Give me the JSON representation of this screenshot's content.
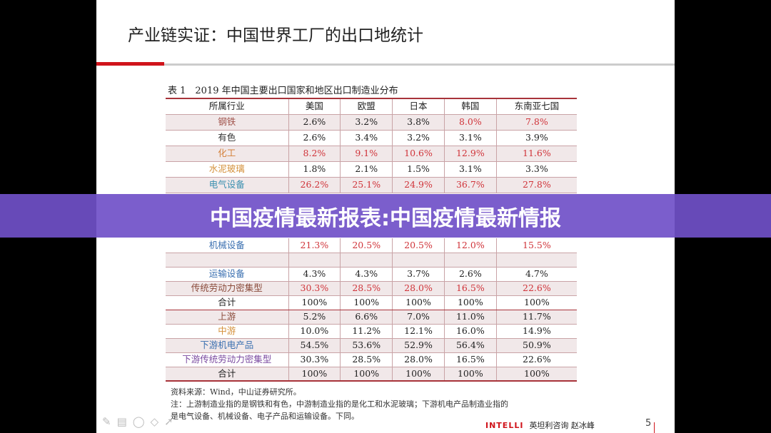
{
  "slide_title": "产业链实证：中国世界工厂的出口地统计",
  "table_caption": "表 1　2019 年中国主要出口国家和地区出口制造业分布",
  "headers": [
    "所属行业",
    "美国",
    "欧盟",
    "日本",
    "韩国",
    "东南亚七国"
  ],
  "rows": [
    {
      "label": "钢铁",
      "color": "#a0524a",
      "cells": [
        "2.6%",
        "3.2%",
        "3.8%",
        "8.0%",
        "7.8%"
      ],
      "hl": [
        0,
        0,
        0,
        1,
        1
      ],
      "shade": true
    },
    {
      "label": "有色",
      "color": "#333333",
      "cells": [
        "2.6%",
        "3.4%",
        "3.2%",
        "3.1%",
        "3.9%"
      ],
      "hl": [
        0,
        0,
        0,
        0,
        0
      ],
      "shade": false
    },
    {
      "label": "化工",
      "color": "#d4803a",
      "cells": [
        "8.2%",
        "9.1%",
        "10.6%",
        "12.9%",
        "11.6%"
      ],
      "hl": [
        1,
        1,
        1,
        1,
        1
      ],
      "shade": true
    },
    {
      "label": "水泥玻璃",
      "color": "#d4903a",
      "cells": [
        "1.8%",
        "2.1%",
        "1.5%",
        "3.1%",
        "3.3%"
      ],
      "hl": [
        0,
        0,
        0,
        0,
        0
      ],
      "shade": false
    },
    {
      "label": "电气设备",
      "color": "#3a8fb0",
      "cells": [
        "26.2%",
        "25.1%",
        "24.9%",
        "36.7%",
        "27.8%"
      ],
      "hl": [
        1,
        1,
        1,
        1,
        1
      ],
      "shade": true
    },
    {
      "label": "机械设备",
      "color": "#3a6fb0",
      "cells": [
        "21.3%",
        "20.5%",
        "20.5%",
        "12.0%",
        "15.5%"
      ],
      "hl": [
        1,
        1,
        1,
        1,
        1
      ],
      "shade": false
    },
    {
      "label": "",
      "color": "#3a6fb0",
      "cells": [
        "",
        "",
        "",
        "",
        ""
      ],
      "hl": [
        0,
        0,
        0,
        0,
        0
      ],
      "shade": true
    },
    {
      "label": "运输设备",
      "color": "#3a6fb0",
      "cells": [
        "4.3%",
        "4.3%",
        "3.7%",
        "2.6%",
        "4.7%"
      ],
      "hl": [
        0,
        0,
        0,
        0,
        0
      ],
      "shade": false
    },
    {
      "label": "传统劳动力密集型",
      "color": "#8a4a3a",
      "cells": [
        "30.3%",
        "28.5%",
        "28.0%",
        "16.5%",
        "22.6%"
      ],
      "hl": [
        1,
        1,
        1,
        1,
        1
      ],
      "shade": true
    },
    {
      "label": "合计",
      "color": "#222222",
      "cells": [
        "100%",
        "100%",
        "100%",
        "100%",
        "100%"
      ],
      "hl": [
        0,
        0,
        0,
        0,
        0
      ],
      "shade": false,
      "sum": true
    },
    {
      "label": "上游",
      "color": "#8a4a3a",
      "cells": [
        "5.2%",
        "6.6%",
        "7.0%",
        "11.0%",
        "11.7%"
      ],
      "hl": [
        0,
        0,
        0,
        0,
        0
      ],
      "shade": true
    },
    {
      "label": "中游",
      "color": "#d4903a",
      "cells": [
        "10.0%",
        "11.2%",
        "12.1%",
        "16.0%",
        "14.9%"
      ],
      "hl": [
        0,
        0,
        0,
        0,
        0
      ],
      "shade": false
    },
    {
      "label": "下游机电产品",
      "color": "#3a6fb0",
      "cells": [
        "54.5%",
        "53.6%",
        "52.9%",
        "56.4%",
        "50.9%"
      ],
      "hl": [
        0,
        0,
        0,
        0,
        0
      ],
      "shade": true
    },
    {
      "label": "下游传统劳动力密集型",
      "color": "#7a4aa0",
      "cells": [
        "30.3%",
        "28.5%",
        "28.0%",
        "16.5%",
        "22.6%"
      ],
      "hl": [
        0,
        0,
        0,
        0,
        0
      ],
      "shade": false
    },
    {
      "label": "合计",
      "color": "#222222",
      "cells": [
        "100%",
        "100%",
        "100%",
        "100%",
        "100%"
      ],
      "hl": [
        0,
        0,
        0,
        0,
        0
      ],
      "shade": true
    }
  ],
  "source_note": "资料来源：Wind，中山证券研究所。",
  "note_line1": "注：上游制造业指的是钢铁和有色，中游制造业指的是化工和水泥玻璃；下游机电产品制造业指的",
  "note_line2": "是电气设备、机械设备、电子产品和运输设备。下同。",
  "brand_logo": "INTELLI",
  "brand_text": "英坦利咨询 赵冰峰",
  "page_number": "5",
  "banner_text": "中国疫情最新报表:中国疫情最新情报"
}
